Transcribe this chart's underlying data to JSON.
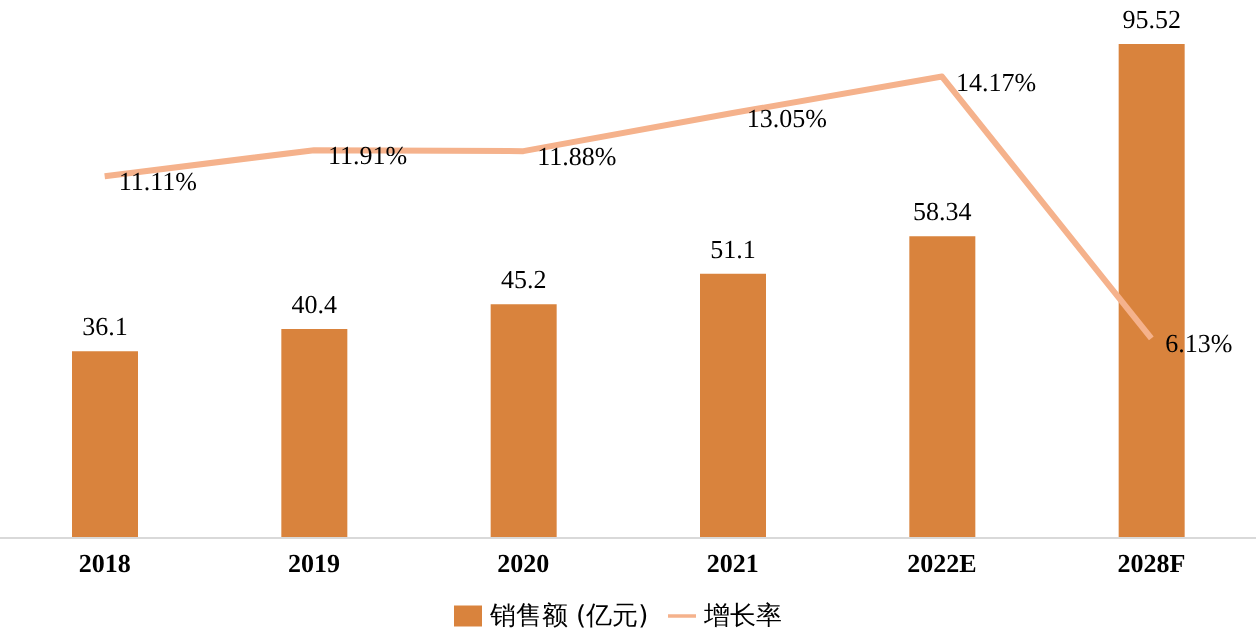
{
  "chart_data": {
    "type": "bar",
    "categories": [
      "2018",
      "2019",
      "2020",
      "2021",
      "2022E",
      "2028F"
    ],
    "series": [
      {
        "name": "销售额 (亿元)",
        "color": "#d9833d",
        "values": [
          36.1,
          40.4,
          45.2,
          51.1,
          58.34,
          95.52
        ]
      },
      {
        "name": "增长率",
        "type": "line",
        "axis": "y2",
        "color": "#f5b28c",
        "values": [
          11.11,
          11.91,
          11.88,
          13.05,
          14.17,
          6.13
        ],
        "value_labels": [
          "11.11%",
          "11.91%",
          "11.88%",
          "13.05%",
          "14.17%",
          "6.13%"
        ]
      }
    ],
    "data_labels": true,
    "grid": false,
    "legend": "bottom",
    "marker": "none",
    "line_style": "solid"
  }
}
